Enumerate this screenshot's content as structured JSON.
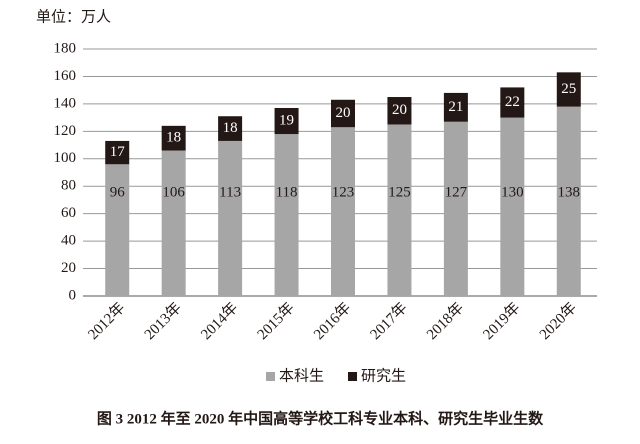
{
  "chart_data": {
    "type": "stacked_bar",
    "unit_label": "单位：万人",
    "caption": "图 3   2012 年至 2020 年中国高等学校工科专业本科、研究生毕业生数",
    "categories": [
      "2012年",
      "2013年",
      "2014年",
      "2015年",
      "2016年",
      "2017年",
      "2018年",
      "2019年",
      "2020年"
    ],
    "series": [
      {
        "name": "本科生",
        "color": "#a6a6a6",
        "values": [
          96,
          106,
          113,
          118,
          123,
          125,
          127,
          130,
          138
        ]
      },
      {
        "name": "研究生",
        "color": "#231815",
        "values": [
          17,
          18,
          18,
          19,
          20,
          20,
          21,
          22,
          25
        ]
      }
    ],
    "ylim": [
      0,
      180
    ],
    "yticks": [
      0,
      20,
      40,
      60,
      80,
      100,
      120,
      140,
      160,
      180
    ],
    "grid": true
  }
}
